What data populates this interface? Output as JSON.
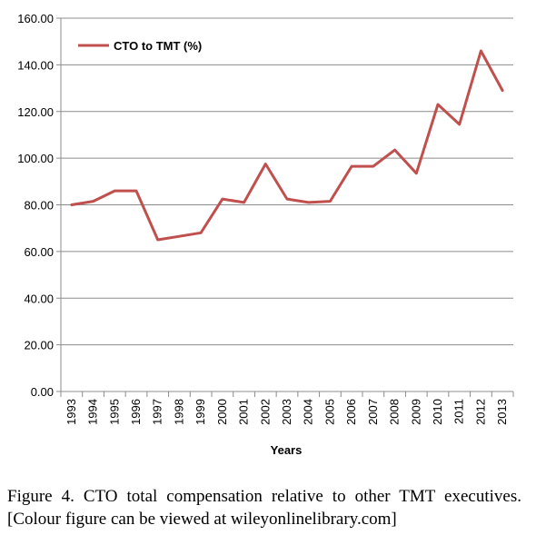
{
  "chart_data": {
    "type": "line",
    "x": [
      "1993",
      "1994",
      "1995",
      "1996",
      "1997",
      "1998",
      "1999",
      "2000",
      "2001",
      "2002",
      "2003",
      "2004",
      "2005",
      "2006",
      "2007",
      "2008",
      "2009",
      "2010",
      "2011",
      "2012",
      "2013"
    ],
    "series": [
      {
        "name": "CTO to TMT (%)",
        "color": "#c0504d",
        "values": [
          80,
          81.5,
          86,
          86,
          65,
          66.5,
          68,
          82.5,
          81,
          97.5,
          82.5,
          81,
          81.5,
          96.5,
          96.5,
          103.5,
          93.5,
          123,
          114.5,
          146,
          129
        ]
      }
    ],
    "ylim": [
      0,
      160
    ],
    "yticks": [
      "0.00",
      "20.00",
      "40.00",
      "60.00",
      "80.00",
      "100.00",
      "120.00",
      "140.00",
      "160.00"
    ],
    "xlabel": "Years",
    "ylabel": "",
    "grid": true,
    "legend_position": "top-left"
  },
  "caption": "Figure 4. CTO total compensation relative to other TMT executives. [Colour figure can be viewed at wileyonlinelibrary.com]"
}
